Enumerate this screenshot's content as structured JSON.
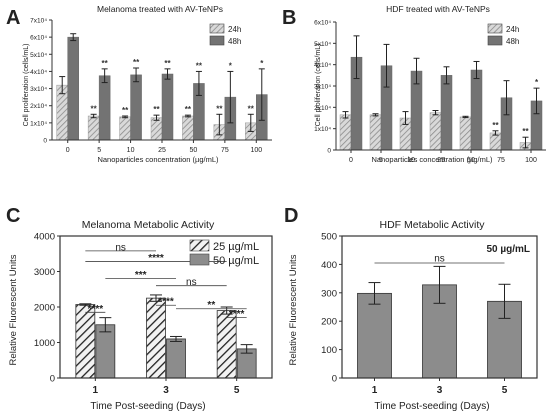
{
  "colors": {
    "bar_24h": "#c8c8c8",
    "bar_48h": "#737373",
    "bar_25": "#cfcfcf",
    "bar_50": "#8c8c8c",
    "error": "#222222",
    "axis": "#333333",
    "star": "#333333"
  },
  "chart_data": [
    {
      "panel_label": "A",
      "type": "bar",
      "title": "Melanoma treated with AV-TeNPs",
      "xlabel": "Nanoparticles concentration (µg/mL)",
      "ylabel": "Cell proliferation (cells/mL)",
      "ylim": [
        0,
        70000
      ],
      "ytick_values": [
        0,
        10000,
        20000,
        30000,
        40000,
        50000,
        60000,
        70000
      ],
      "ytick_labels": [
        "0",
        "1x10⁴",
        "2x10⁴",
        "3x10⁴",
        "4x10⁴",
        "5x10⁴",
        "6x10⁴",
        "7x10⁴"
      ],
      "categories": [
        "0",
        "5",
        "10",
        "25",
        "50",
        "75",
        "100"
      ],
      "legend_position": "top-right",
      "series": [
        {
          "name": "24h",
          "pattern": "hatch",
          "values": [
            32000,
            14000,
            13500,
            13000,
            14000,
            9000,
            10000
          ],
          "errors": [
            5000,
            1000,
            500,
            1500,
            500,
            6000,
            5000
          ],
          "stars": [
            "",
            "**",
            "**",
            "**",
            "**",
            "**",
            "**"
          ]
        },
        {
          "name": "48h",
          "pattern": "solid",
          "values": [
            60000,
            37500,
            38000,
            38500,
            33000,
            25000,
            26500
          ],
          "errors": [
            2000,
            4000,
            4000,
            3000,
            7000,
            15000,
            15000
          ],
          "stars": [
            "",
            "**",
            "**",
            "**",
            "**",
            "*",
            "*"
          ]
        }
      ]
    },
    {
      "panel_label": "B",
      "type": "bar",
      "title": "HDF treated with AV-TeNPs",
      "xlabel": "Nanoparticles concentration (µg/mL)",
      "ylabel": "Cell proliferation (cells/mL)",
      "ylim": [
        0,
        60000
      ],
      "ytick_values": [
        0,
        10000,
        20000,
        30000,
        40000,
        50000,
        60000
      ],
      "ytick_labels": [
        "0",
        "1x10⁴",
        "2x10⁴",
        "3x10⁴",
        "4x10⁴",
        "5x10⁴",
        "6x10⁴"
      ],
      "categories": [
        "0",
        "5",
        "10",
        "25",
        "50",
        "75",
        "100"
      ],
      "legend_position": "top-right",
      "series": [
        {
          "name": "24h",
          "pattern": "hatch",
          "values": [
            16500,
            16500,
            15000,
            17500,
            15500,
            8000,
            3500
          ],
          "errors": [
            1500,
            500,
            3000,
            1000,
            300,
            1000,
            2500
          ],
          "stars": [
            "",
            "",
            "",
            "",
            "",
            "**",
            "**"
          ]
        },
        {
          "name": "48h",
          "pattern": "solid",
          "values": [
            43500,
            39500,
            37000,
            35000,
            37500,
            24500,
            23000
          ],
          "errors": [
            10000,
            10000,
            6000,
            4000,
            4000,
            8000,
            6000
          ],
          "stars": [
            "",
            "",
            "",
            "",
            "",
            "",
            "*"
          ]
        }
      ]
    },
    {
      "panel_label": "C",
      "type": "bar",
      "title": "Melanoma Metabolic Activity",
      "xlabel": "Time Post-seeding (Days)",
      "ylabel": "Relative Fluorescent Units",
      "ylim": [
        0,
        4000
      ],
      "ytick_values": [
        0,
        1000,
        2000,
        3000,
        4000
      ],
      "ytick_labels": [
        "0",
        "1000",
        "2000",
        "3000",
        "4000"
      ],
      "categories": [
        "1",
        "3",
        "5"
      ],
      "legend_position": "top-right",
      "series": [
        {
          "name": "25 µg/mL",
          "pattern": "hatch",
          "values": [
            2070,
            2250,
            1900
          ],
          "errors": [
            20,
            90,
            100
          ]
        },
        {
          "name": "50 µg/mL",
          "pattern": "solid",
          "values": [
            1500,
            1100,
            820
          ],
          "errors": [
            200,
            70,
            120
          ]
        }
      ],
      "brackets": [
        {
          "label": "****",
          "x1": [
            0,
            0
          ],
          "x2": [
            0,
            1
          ],
          "y": 1850,
          "text_y": 1950
        },
        {
          "label": "****",
          "x1": [
            1,
            0
          ],
          "x2": [
            1,
            1
          ],
          "y": 2050,
          "text_y": 2150
        },
        {
          "label": "****",
          "x1": [
            2,
            0
          ],
          "x2": [
            2,
            1
          ],
          "y": 1700,
          "text_y": 1800
        },
        {
          "label": "***",
          "x1": [
            0,
            1
          ],
          "x2": [
            1,
            1
          ],
          "y": 2800,
          "text_y": 2900
        },
        {
          "label": "**",
          "x1": [
            1,
            1
          ],
          "x2": [
            2,
            1
          ],
          "y": 1950,
          "text_y": 2050
        },
        {
          "label": "****",
          "x1": [
            0,
            0
          ],
          "x2": [
            2,
            0
          ],
          "y": 3280,
          "text_y": 3380
        },
        {
          "label": "ns",
          "x1": [
            0,
            0
          ],
          "x2": [
            1,
            0
          ],
          "y": 3580,
          "text_y": 3680
        },
        {
          "label": "ns",
          "x1": [
            1,
            0
          ],
          "x2": [
            2,
            0
          ],
          "y": 2600,
          "text_y": 2700
        }
      ]
    },
    {
      "panel_label": "D",
      "type": "bar",
      "title": "HDF Metabolic Activity",
      "annotation": "50 µg/mL",
      "xlabel": "Time Post-seeding (Days)",
      "ylabel": "Relative Fluorescent Units",
      "ylim": [
        0,
        500
      ],
      "ytick_values": [
        0,
        100,
        200,
        300,
        400,
        500
      ],
      "ytick_labels": [
        "0",
        "100",
        "200",
        "300",
        "400",
        "500"
      ],
      "categories": [
        "1",
        "3",
        "5"
      ],
      "series": [
        {
          "name": "",
          "pattern": "solid",
          "values": [
            298,
            328,
            270
          ],
          "errors": [
            38,
            65,
            60
          ]
        }
      ],
      "brackets": [
        {
          "label": "ns",
          "from": 0,
          "to": 2,
          "y": 405,
          "text_y": 420
        }
      ]
    }
  ]
}
